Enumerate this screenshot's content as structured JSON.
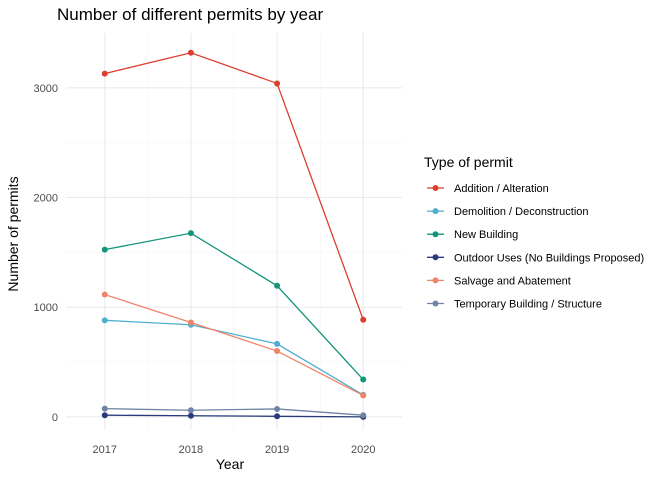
{
  "chart_data": {
    "type": "line",
    "title": "Number of different permits by year",
    "xlabel": "Year",
    "ylabel": "Number of permits",
    "x": [
      2017,
      2018,
      2019,
      2020
    ],
    "x_tick_labels": [
      "2017",
      "2018",
      "2019",
      "2020"
    ],
    "xlim": [
      2016.55,
      2020.45
    ],
    "ylim": [
      -120,
      3500
    ],
    "y_ticks": [
      0,
      1000,
      2000,
      3000
    ],
    "y_tick_labels": [
      "0",
      "1000",
      "2000",
      "3000"
    ],
    "grid": true,
    "legend_title": "Type of permit",
    "legend_position": "right",
    "series": [
      {
        "name": "Addition / Alteration",
        "color": "#dd3f2f",
        "values": [
          3130,
          3320,
          3040,
          885
        ]
      },
      {
        "name": "Demolition / Deconstruction",
        "color": "#4eafd0",
        "values": [
          880,
          840,
          665,
          200
        ]
      },
      {
        "name": "New Building",
        "color": "#13957b",
        "values": [
          1525,
          1675,
          1195,
          340
        ]
      },
      {
        "name": "Outdoor Uses (No Buildings Proposed)",
        "color": "#2b3b7a",
        "values": [
          15,
          10,
          5,
          0
        ]
      },
      {
        "name": "Salvage and Abatement",
        "color": "#f0846a",
        "values": [
          1115,
          860,
          600,
          195
        ]
      },
      {
        "name": "Temporary Building / Structure",
        "color": "#7183a6",
        "values": [
          75,
          60,
          72,
          15
        ]
      }
    ]
  }
}
